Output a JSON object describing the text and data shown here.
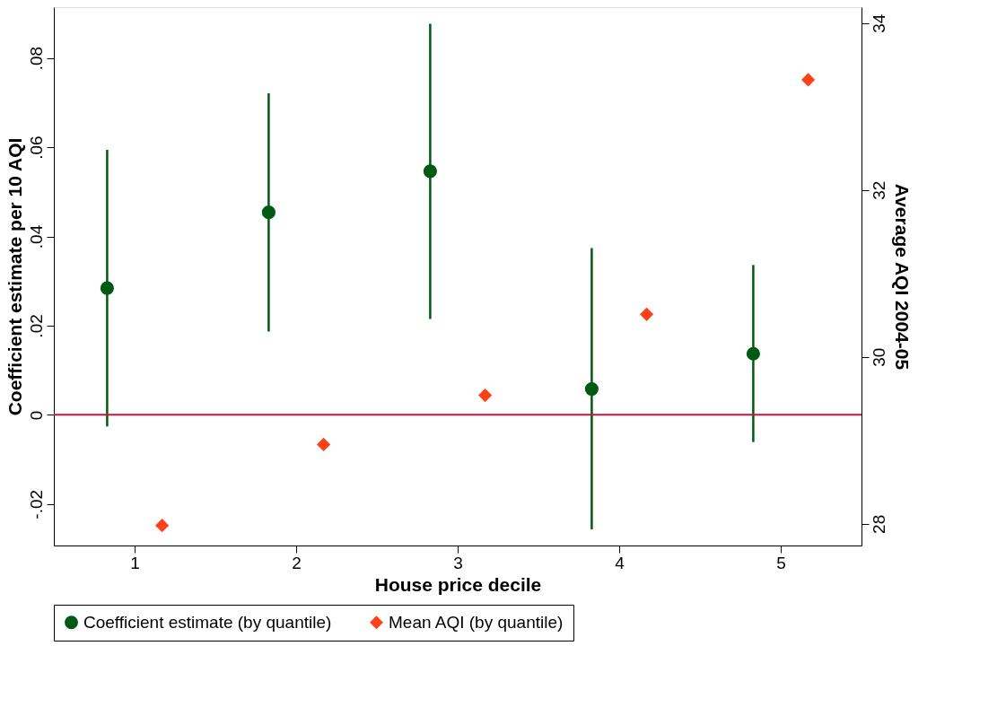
{
  "chart_data": {
    "type": "scatter",
    "xlabel": "House price decile",
    "ylabel": "Coefficient estimate per 10 AQI",
    "y2label": "Average AQI 2004-05",
    "xlim": [
      0.5,
      5.5
    ],
    "xticks": [
      1,
      2,
      3,
      4,
      5
    ],
    "ylim": [
      -0.0293,
      0.0914
    ],
    "yticks": [
      {
        "value": -0.02,
        "label": "-.02"
      },
      0,
      {
        "value": 0.02,
        "label": ".02"
      },
      {
        "value": 0.04,
        "label": ".04"
      },
      {
        "value": 0.06,
        "label": ".06"
      },
      {
        "value": 0.08,
        "label": ".08"
      }
    ],
    "y2lim": [
      27.74,
      34.19
    ],
    "y2ticks": [
      28,
      30,
      32,
      34
    ],
    "grid": false,
    "legend": "bottom",
    "series": [
      {
        "name": "Coefficient estimate (by quantile)",
        "color": "#005a14",
        "marker": "circle",
        "x": [
          0.83,
          1.83,
          2.83,
          3.83,
          4.83
        ],
        "values": [
          0.0284,
          0.0454,
          0.0546,
          0.0058,
          0.0137
        ],
        "errors": [
          [
            -0.0026,
            0.0594
          ],
          [
            0.0187,
            0.0721
          ],
          [
            0.0215,
            0.0877
          ],
          [
            -0.0257,
            0.0374
          ],
          [
            -0.0061,
            0.0336
          ]
        ]
      },
      {
        "name": "Mean AQI (by quantile)",
        "color": "#ff4119",
        "marker": "diamond",
        "axis": "y2",
        "x": [
          1.17,
          2.17,
          3.17,
          4.17,
          5.17
        ],
        "values": [
          27.98,
          28.95,
          29.54,
          30.51,
          33.32
        ]
      }
    ],
    "ref_lines": [
      {
        "axis": "y",
        "value": 0,
        "color": "#c8143c",
        "line_style": "solid"
      }
    ]
  }
}
